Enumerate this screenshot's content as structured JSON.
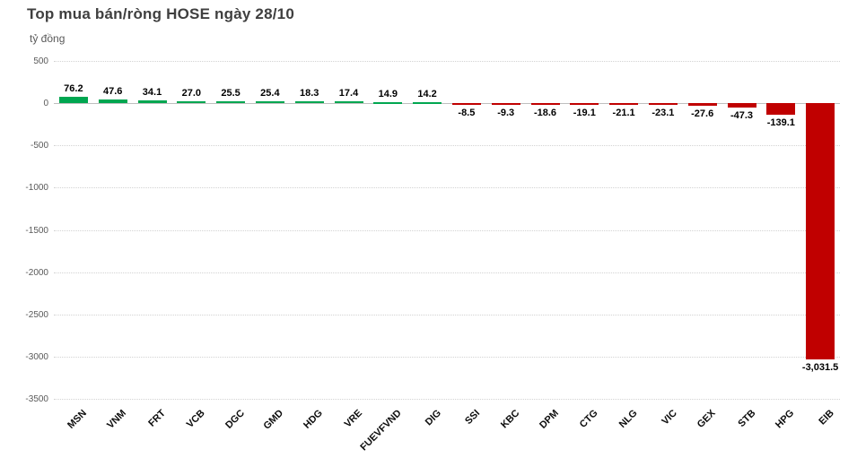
{
  "header": {
    "title": "Top mua bán/ròng HOSE ngày 28/10",
    "unit_label": "tỷ đồng"
  },
  "chart_data": {
    "type": "bar",
    "title": "Top mua bán/ròng HOSE ngày 28/10",
    "ylabel": "tỷ đồng",
    "xlabel": "",
    "categories": [
      "MSN",
      "VNM",
      "FRT",
      "VCB",
      "DGC",
      "GMD",
      "HDG",
      "VRE",
      "FUEVFVND",
      "DIG",
      "SSI",
      "KBC",
      "DPM",
      "CTG",
      "NLG",
      "VIC",
      "GEX",
      "STB",
      "HPG",
      "EIB"
    ],
    "values": [
      76.2,
      47.6,
      34.1,
      27.0,
      25.5,
      25.4,
      18.3,
      17.4,
      14.9,
      14.2,
      -8.5,
      -9.3,
      -18.6,
      -19.1,
      -21.1,
      -23.1,
      -27.6,
      -47.3,
      -139.1,
      -3031.5
    ],
    "value_labels": [
      "76.2",
      "47.6",
      "34.1",
      "27.0",
      "25.5",
      "25.4",
      "18.3",
      "17.4",
      "14.9",
      "14.2",
      "-8.5",
      "-9.3",
      "-18.6",
      "-19.1",
      "-21.1",
      "-23.1",
      "-27.6",
      "-47.3",
      "-139.1",
      "-3,031.5"
    ],
    "yticks": [
      500,
      0,
      -500,
      -1000,
      -1500,
      -2000,
      -2500,
      -3000,
      -3500
    ],
    "ytick_labels": [
      "500",
      "0",
      "-500",
      "-1000",
      "-1500",
      "-2000",
      "-2500",
      "-3000",
      "-3500"
    ],
    "ylim": [
      -3500,
      500
    ],
    "grid": true,
    "legend": false,
    "colors": {
      "positive": "#00A650",
      "negative": "#C00000",
      "gridline": "#d2d2d2",
      "axis_text": "#595959",
      "title_text": "#3f3f3f"
    }
  }
}
